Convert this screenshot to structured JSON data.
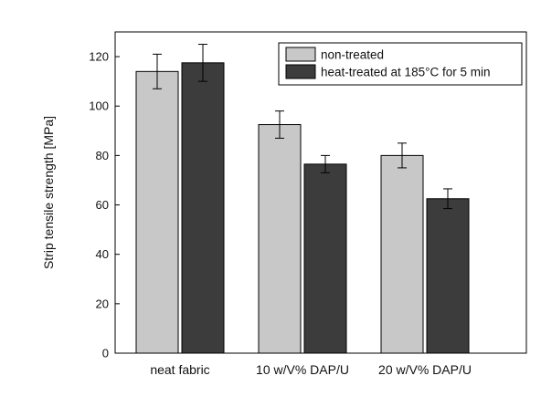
{
  "chart_data": {
    "type": "bar",
    "title": "",
    "xlabel": "",
    "ylabel": "Strip tensile strength [MPa]",
    "ylim": [
      0,
      130
    ],
    "yticks": [
      0,
      20,
      40,
      60,
      80,
      100,
      120
    ],
    "grid": false,
    "legend_position": "top-right",
    "categories": [
      "neat fabric",
      "10 w/V% DAP/U",
      "20 w/V% DAP/U"
    ],
    "series": [
      {
        "name": "non-treated",
        "color": "#c8c8c8",
        "values": [
          114,
          92.5,
          80
        ],
        "errors": [
          7,
          5.5,
          5
        ]
      },
      {
        "name": "heat-treated at 185°C for 5 min",
        "color": "#3c3c3c",
        "values": [
          117.5,
          76.5,
          62.5
        ],
        "errors": [
          7.5,
          3.5,
          4
        ]
      }
    ]
  }
}
